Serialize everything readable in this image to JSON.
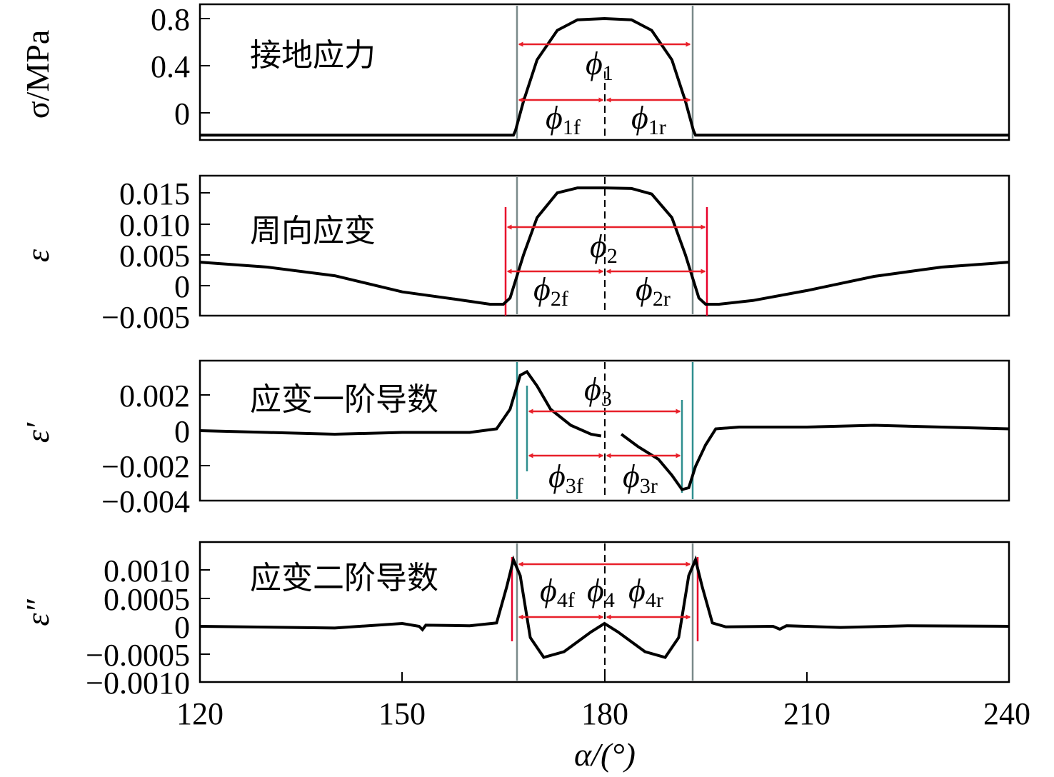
{
  "chart_data": [
    {
      "type": "line",
      "annotation": "接地应力",
      "ylabel": "σ/MPa",
      "yticks": [
        0.8,
        0.4,
        0
      ],
      "ytick_labels": [
        "0.8",
        "0.4",
        "0"
      ],
      "ylim": [
        -0.2,
        0.82
      ],
      "x": [
        120,
        166.5,
        166.8,
        168,
        170,
        173,
        176,
        180,
        184,
        187,
        190,
        192,
        193.2,
        193.5,
        240
      ],
      "y": [
        -0.19,
        -0.19,
        -0.15,
        0.1,
        0.45,
        0.7,
        0.79,
        0.8,
        0.79,
        0.7,
        0.45,
        0.1,
        -0.15,
        -0.19,
        -0.19
      ],
      "vlines": [
        167,
        193
      ],
      "vline_colors": [
        "#7a8a8a",
        "#7a8a8a"
      ],
      "span_labels": [
        "ϕ1",
        "ϕ1f",
        "ϕ1r"
      ]
    },
    {
      "type": "line",
      "annotation": "周向应变",
      "ylabel": "ε",
      "yticks": [
        0.015,
        0.01,
        0.005,
        0,
        -0.005
      ],
      "ytick_labels": [
        "0.015",
        "0.010",
        "0.005",
        "0",
        "−0.005"
      ],
      "ylim": [
        -0.005,
        0.0185
      ],
      "x": [
        120,
        130,
        140,
        150,
        158,
        163,
        165,
        166,
        168,
        170,
        173,
        176,
        180,
        184,
        187,
        190,
        192,
        194,
        195,
        197,
        202,
        210,
        220,
        230,
        240
      ],
      "y": [
        0.0038,
        0.003,
        0.0016,
        -0.001,
        -0.0022,
        -0.003,
        -0.003,
        -0.002,
        0.005,
        0.011,
        0.015,
        0.0158,
        0.0158,
        0.0157,
        0.0148,
        0.011,
        0.005,
        -0.002,
        -0.003,
        -0.003,
        -0.0024,
        -0.0008,
        0.0015,
        0.003,
        0.0038
      ],
      "vlines": [
        165,
        167,
        193,
        195
      ],
      "vline_colors": [
        "#e8002a",
        "#7a8a8a",
        "#7a8a8a",
        "#e8002a"
      ],
      "span_labels": [
        "ϕ2",
        "ϕ2f",
        "ϕ2r"
      ]
    },
    {
      "type": "line",
      "annotation": "应变一阶导数",
      "ylabel": "ε′",
      "yticks": [
        0.002,
        0,
        -0.002,
        -0.004
      ],
      "ytick_labels": [
        "0.002",
        "0",
        "−0.002",
        "−0.004"
      ],
      "ylim": [
        -0.004,
        0.004
      ],
      "x": [
        120,
        130,
        140,
        150,
        160,
        164,
        166,
        167.5,
        168.5,
        170,
        172,
        175,
        178,
        179.5,
        182.5,
        185,
        188,
        190,
        191.5,
        192.5,
        193.5,
        195,
        196.5,
        200,
        210,
        220,
        230,
        240
      ],
      "y": [
        0,
        -0.0001,
        -0.0002,
        -0.0001,
        -0.0001,
        0.0001,
        0.0012,
        0.0031,
        0.0033,
        0.0025,
        0.0012,
        0.0003,
        -0.0002,
        -0.0003,
        -0.0002,
        -0.0009,
        -0.0016,
        -0.0025,
        -0.0033,
        -0.0032,
        -0.002,
        -0.0008,
        0.0001,
        0.0002,
        0.0002,
        0.0003,
        0.0002,
        0.0001
      ],
      "gap_x": [
        179.5,
        182.5
      ],
      "vlines": [
        167,
        168.5,
        192,
        193
      ],
      "vline_colors": [
        "#2f8f8f",
        "#2f8f8f",
        "#2f8f8f",
        "#2f8f8f"
      ],
      "span_labels": [
        "ϕ3",
        "ϕ3f",
        "ϕ3r"
      ]
    },
    {
      "type": "line",
      "annotation": "应变二阶导数",
      "ylabel": "ε″",
      "yticks": [
        0.001,
        0.0005,
        0,
        -0.0005,
        -0.001
      ],
      "ytick_labels": [
        "0.0010",
        "0.0005",
        "0",
        "−0.0005",
        "−0.0010"
      ],
      "ylim": [
        -0.00095,
        0.00153
      ],
      "x": [
        120,
        140,
        150,
        152.5,
        153,
        153.5,
        160,
        164,
        165.5,
        166.5,
        167.5,
        169,
        171,
        174,
        178,
        180,
        182,
        186,
        189,
        191,
        192.5,
        193.5,
        194.5,
        196,
        198,
        205,
        206,
        207,
        215,
        225,
        240
      ],
      "y": [
        0,
        -3e-05,
        5e-05,
        0,
        -6e-05,
        2e-05,
        1e-05,
        6e-05,
        0.0007,
        0.00118,
        0.0009,
        -0.0002,
        -0.00055,
        -0.00045,
        -0.0001,
        5e-05,
        -0.0001,
        -0.00045,
        -0.00055,
        -0.0002,
        0.0009,
        0.00118,
        0.0007,
        6e-05,
        -1e-05,
        0,
        -5e-05,
        1e-05,
        -2e-05,
        1e-05,
        0
      ],
      "vlines": [
        165.8,
        166.9,
        193.1,
        194.2
      ],
      "vline_colors": [
        "#e8002a",
        "#7a8a8a",
        "#7a8a8a",
        "#e8002a"
      ],
      "span_labels": [
        "ϕ4f",
        "ϕ4",
        "ϕ4r"
      ]
    }
  ],
  "x_axis": {
    "label": "α/(°)",
    "ticks": [
      120,
      150,
      180,
      210,
      240
    ],
    "tick_labels": [
      "120",
      "150",
      "180",
      "210",
      "240"
    ],
    "xlim": [
      120,
      240
    ]
  },
  "colors": {
    "curve": "#000000",
    "arrow": "#e8202a",
    "red_line": "#e8002a",
    "grey_line": "#7a8a8a",
    "teal_line": "#2f8f8f"
  }
}
